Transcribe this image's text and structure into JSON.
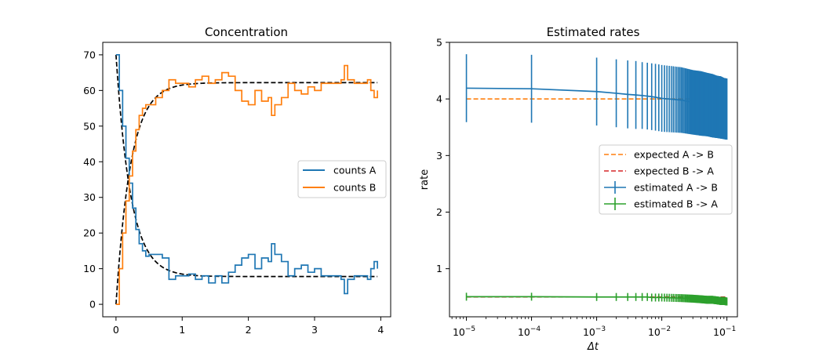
{
  "chart_data": [
    {
      "type": "line",
      "title": "Concentration",
      "xlabel": "",
      "ylabel": "",
      "xlim": [
        -0.2,
        4.15
      ],
      "ylim": [
        -3.5,
        73.5
      ],
      "xticks": [
        0,
        1,
        2,
        3,
        4
      ],
      "yticks": [
        0,
        10,
        20,
        30,
        40,
        50,
        60,
        70
      ],
      "legend_position": "center-right",
      "series": [
        {
          "name": "counts A",
          "color": "#1f77b4",
          "step": true,
          "points": [
            [
              0,
              70
            ],
            [
              0.05,
              60
            ],
            [
              0.1,
              50
            ],
            [
              0.15,
              41
            ],
            [
              0.2,
              34
            ],
            [
              0.25,
              27
            ],
            [
              0.3,
              21
            ],
            [
              0.35,
              17
            ],
            [
              0.4,
              15
            ],
            [
              0.45,
              13.5
            ],
            [
              0.5,
              14
            ],
            [
              0.6,
              14
            ],
            [
              0.7,
              13
            ],
            [
              0.8,
              7
            ],
            [
              0.9,
              8
            ],
            [
              1.0,
              8
            ],
            [
              1.1,
              8.5
            ],
            [
              1.2,
              7
            ],
            [
              1.3,
              8
            ],
            [
              1.4,
              6
            ],
            [
              1.5,
              8
            ],
            [
              1.6,
              6
            ],
            [
              1.7,
              9
            ],
            [
              1.8,
              11
            ],
            [
              1.9,
              13
            ],
            [
              2.0,
              14
            ],
            [
              2.1,
              10
            ],
            [
              2.2,
              13
            ],
            [
              2.3,
              12
            ],
            [
              2.35,
              17
            ],
            [
              2.4,
              14
            ],
            [
              2.5,
              12
            ],
            [
              2.6,
              8
            ],
            [
              2.7,
              10
            ],
            [
              2.8,
              11
            ],
            [
              2.9,
              9
            ],
            [
              3.0,
              10
            ],
            [
              3.1,
              8
            ],
            [
              3.2,
              8
            ],
            [
              3.3,
              8
            ],
            [
              3.4,
              7
            ],
            [
              3.45,
              3
            ],
            [
              3.5,
              7
            ],
            [
              3.6,
              8
            ],
            [
              3.7,
              8
            ],
            [
              3.8,
              7
            ],
            [
              3.85,
              10
            ],
            [
              3.9,
              12
            ],
            [
              3.95,
              10
            ]
          ]
        },
        {
          "name": "counts B",
          "color": "#ff7f0e",
          "step": true,
          "points": [
            [
              0,
              0
            ],
            [
              0.05,
              10
            ],
            [
              0.1,
              20
            ],
            [
              0.15,
              29
            ],
            [
              0.2,
              36
            ],
            [
              0.25,
              43
            ],
            [
              0.3,
              49
            ],
            [
              0.35,
              53
            ],
            [
              0.4,
              55
            ],
            [
              0.45,
              56
            ],
            [
              0.5,
              56
            ],
            [
              0.6,
              58
            ],
            [
              0.7,
              60
            ],
            [
              0.8,
              63
            ],
            [
              0.9,
              62
            ],
            [
              1.0,
              62
            ],
            [
              1.1,
              61
            ],
            [
              1.2,
              63
            ],
            [
              1.3,
              64
            ],
            [
              1.4,
              62
            ],
            [
              1.5,
              63
            ],
            [
              1.6,
              65
            ],
            [
              1.7,
              64
            ],
            [
              1.8,
              60
            ],
            [
              1.9,
              57
            ],
            [
              2.0,
              56
            ],
            [
              2.1,
              60
            ],
            [
              2.2,
              57
            ],
            [
              2.3,
              58
            ],
            [
              2.35,
              53
            ],
            [
              2.4,
              56
            ],
            [
              2.5,
              58
            ],
            [
              2.6,
              62
            ],
            [
              2.7,
              60
            ],
            [
              2.8,
              59
            ],
            [
              2.9,
              61
            ],
            [
              3.0,
              60
            ],
            [
              3.1,
              62
            ],
            [
              3.2,
              62
            ],
            [
              3.3,
              62
            ],
            [
              3.4,
              63
            ],
            [
              3.45,
              67
            ],
            [
              3.5,
              63
            ],
            [
              3.6,
              62
            ],
            [
              3.7,
              62
            ],
            [
              3.8,
              63
            ],
            [
              3.85,
              60
            ],
            [
              3.9,
              58
            ],
            [
              3.95,
              60
            ]
          ]
        },
        {
          "name": "",
          "color": "#000000",
          "dashed": true,
          "function": "exp_decay",
          "from": 70,
          "to": 7.8,
          "k": 4.5
        },
        {
          "name": "",
          "color": "#000000",
          "dashed": true,
          "function": "exp_rise",
          "from": 0,
          "to": 62.2,
          "k": 4.5
        }
      ]
    },
    {
      "type": "line",
      "title": "Estimated rates",
      "xlabel": "Δt",
      "ylabel": "rate",
      "xscale": "log",
      "xlim": [
        5.5e-06,
        0.145
      ],
      "ylim": [
        0.15,
        5.0
      ],
      "xticks": [
        1e-05,
        0.0001,
        0.001,
        0.01,
        0.1
      ],
      "xtick_labels": [
        [
          "10",
          "−5"
        ],
        [
          "10",
          "−4"
        ],
        [
          "10",
          "−3"
        ],
        [
          "10",
          "−2"
        ],
        [
          "10",
          "−1"
        ]
      ],
      "yticks": [
        1,
        2,
        3,
        4,
        5
      ],
      "legend_position": "center-right",
      "series": [
        {
          "name": "expected A -> B",
          "color": "#ff7f0e",
          "dashed": true,
          "y": 4.0
        },
        {
          "name": "expected B -> A",
          "color": "#d62728",
          "dashed": true,
          "y": 0.5
        },
        {
          "name": "estimated A -> B",
          "color": "#1f77b4",
          "errorbar": true,
          "points": [
            [
              1e-05,
              4.19,
              0.6
            ],
            [
              0.0001,
              4.18,
              0.6
            ],
            [
              0.001,
              4.13,
              0.6
            ],
            [
              0.002,
              4.1,
              0.6
            ],
            [
              0.003,
              4.08,
              0.6
            ],
            [
              0.004,
              4.07,
              0.6
            ],
            [
              0.005,
              4.06,
              0.59
            ],
            [
              0.006,
              4.05,
              0.59
            ],
            [
              0.007,
              4.04,
              0.59
            ],
            [
              0.008,
              4.03,
              0.59
            ],
            [
              0.009,
              4.02,
              0.59
            ],
            [
              0.01,
              4.01,
              0.59
            ],
            [
              0.02,
              3.98,
              0.58
            ],
            [
              0.03,
              3.94,
              0.57
            ],
            [
              0.04,
              3.92,
              0.57
            ],
            [
              0.05,
              3.9,
              0.56
            ],
            [
              0.06,
              3.88,
              0.56
            ],
            [
              0.07,
              3.86,
              0.55
            ],
            [
              0.08,
              3.85,
              0.55
            ],
            [
              0.09,
              3.83,
              0.54
            ],
            [
              0.1,
              3.82,
              0.54
            ]
          ],
          "dense_from": 0.011
        },
        {
          "name": "estimated B -> A",
          "color": "#2ca02c",
          "errorbar": true,
          "points": [
            [
              1e-05,
              0.505,
              0.07
            ],
            [
              0.0001,
              0.505,
              0.07
            ],
            [
              0.001,
              0.5,
              0.07
            ],
            [
              0.002,
              0.5,
              0.07
            ],
            [
              0.003,
              0.5,
              0.07
            ],
            [
              0.004,
              0.5,
              0.07
            ],
            [
              0.005,
              0.5,
              0.07
            ],
            [
              0.006,
              0.5,
              0.07
            ],
            [
              0.007,
              0.49,
              0.07
            ],
            [
              0.008,
              0.49,
              0.07
            ],
            [
              0.009,
              0.49,
              0.07
            ],
            [
              0.01,
              0.49,
              0.07
            ],
            [
              0.02,
              0.48,
              0.07
            ],
            [
              0.03,
              0.47,
              0.07
            ],
            [
              0.04,
              0.46,
              0.07
            ],
            [
              0.05,
              0.45,
              0.07
            ],
            [
              0.06,
              0.45,
              0.07
            ],
            [
              0.07,
              0.44,
              0.07
            ],
            [
              0.08,
              0.43,
              0.07
            ],
            [
              0.09,
              0.43,
              0.07
            ],
            [
              0.1,
              0.42,
              0.07
            ]
          ],
          "dense_from": 0.011
        }
      ]
    }
  ]
}
